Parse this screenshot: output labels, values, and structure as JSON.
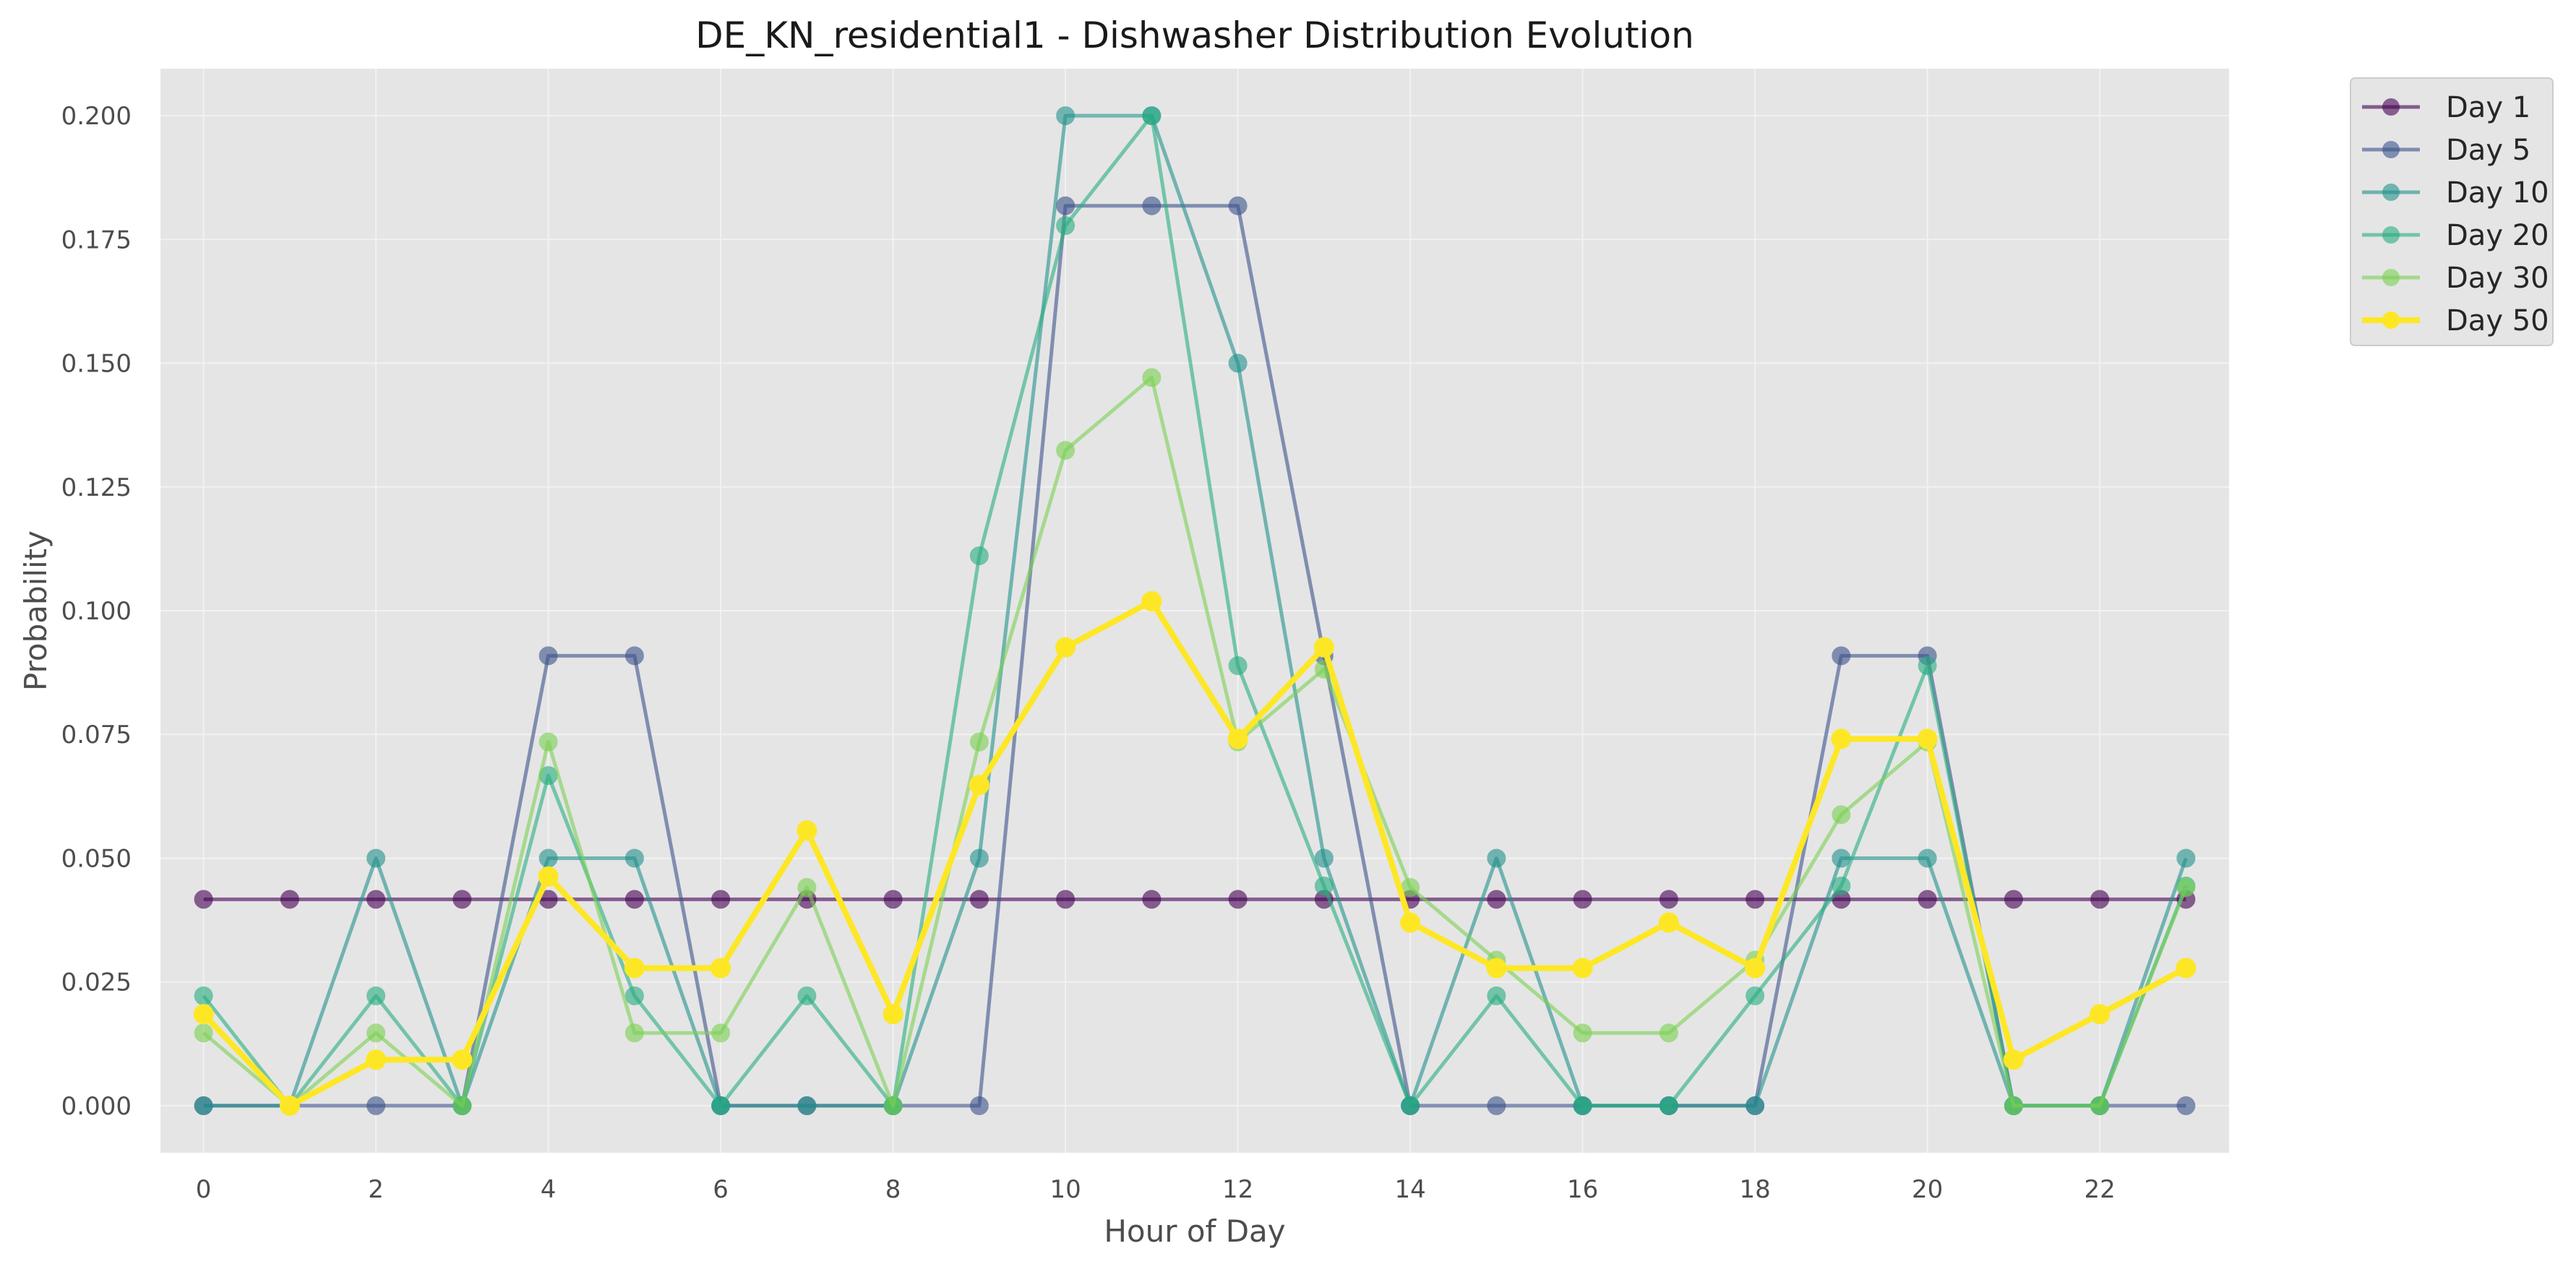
{
  "chart_data": {
    "type": "line",
    "title": "DE_KN_residential1 - Dishwasher Distribution Evolution",
    "xlabel": "Hour of Day",
    "ylabel": "Probability",
    "x": [
      0,
      1,
      2,
      3,
      4,
      5,
      6,
      7,
      8,
      9,
      10,
      11,
      12,
      13,
      14,
      15,
      16,
      17,
      18,
      19,
      20,
      21,
      22,
      23
    ],
    "xlim": [
      -0.5,
      23.5
    ],
    "ylim": [
      -0.0095,
      0.2095
    ],
    "x_ticks": [
      "0",
      "2",
      "4",
      "6",
      "8",
      "10",
      "12",
      "14",
      "16",
      "18",
      "20",
      "22"
    ],
    "y_ticks": [
      "0.000",
      "0.025",
      "0.050",
      "0.075",
      "0.100",
      "0.125",
      "0.150",
      "0.175",
      "0.200"
    ],
    "grid": true,
    "legend_position": "outside top-right",
    "series": [
      {
        "name": "Day 1",
        "color": "#440154",
        "values": [
          0.0417,
          0.0417,
          0.0417,
          0.0417,
          0.0417,
          0.0417,
          0.0417,
          0.0417,
          0.0417,
          0.0417,
          0.0417,
          0.0417,
          0.0417,
          0.0417,
          0.0417,
          0.0417,
          0.0417,
          0.0417,
          0.0417,
          0.0417,
          0.0417,
          0.0417,
          0.0417,
          0.0417
        ]
      },
      {
        "name": "Day 5",
        "color": "#3b528b",
        "values": [
          0,
          0,
          0,
          0,
          0.0909,
          0.0909,
          0,
          0,
          0,
          0,
          0.1818,
          0.1818,
          0.1818,
          0.0909,
          0,
          0,
          0,
          0,
          0,
          0.0909,
          0.0909,
          0,
          0,
          0
        ]
      },
      {
        "name": "Day 10",
        "color": "#21918c",
        "values": [
          0,
          0,
          0.05,
          0,
          0.05,
          0.05,
          0,
          0,
          0,
          0.05,
          0.2,
          0.2,
          0.15,
          0.05,
          0,
          0.05,
          0,
          0,
          0,
          0.05,
          0.05,
          0,
          0,
          0.05
        ]
      },
      {
        "name": "Day 20",
        "color": "#27ad81",
        "values": [
          0.0222,
          0,
          0.0222,
          0,
          0.0667,
          0.0222,
          0,
          0.0222,
          0,
          0.1111,
          0.1778,
          0.2,
          0.0889,
          0.0444,
          0,
          0.0222,
          0,
          0,
          0.0222,
          0.0444,
          0.0889,
          0,
          0,
          0.0444
        ]
      },
      {
        "name": "Day 30",
        "color": "#7ad151",
        "values": [
          0.0147,
          0,
          0.0147,
          0,
          0.0735,
          0.0147,
          0.0147,
          0.0441,
          0,
          0.0735,
          0.1324,
          0.1471,
          0.0735,
          0.0882,
          0.0441,
          0.0294,
          0.0147,
          0.0147,
          0.0294,
          0.0588,
          0.0735,
          0,
          0,
          0.0441
        ]
      },
      {
        "name": "Day 50",
        "color": "#fde725",
        "values": [
          0.0185,
          0,
          0.0093,
          0.0093,
          0.0463,
          0.0278,
          0.0278,
          0.0556,
          0.0185,
          0.0648,
          0.0926,
          0.1019,
          0.0741,
          0.0926,
          0.037,
          0.0278,
          0.0278,
          0.037,
          0.0278,
          0.0741,
          0.0741,
          0.0093,
          0.0185,
          0.0278
        ]
      }
    ]
  }
}
